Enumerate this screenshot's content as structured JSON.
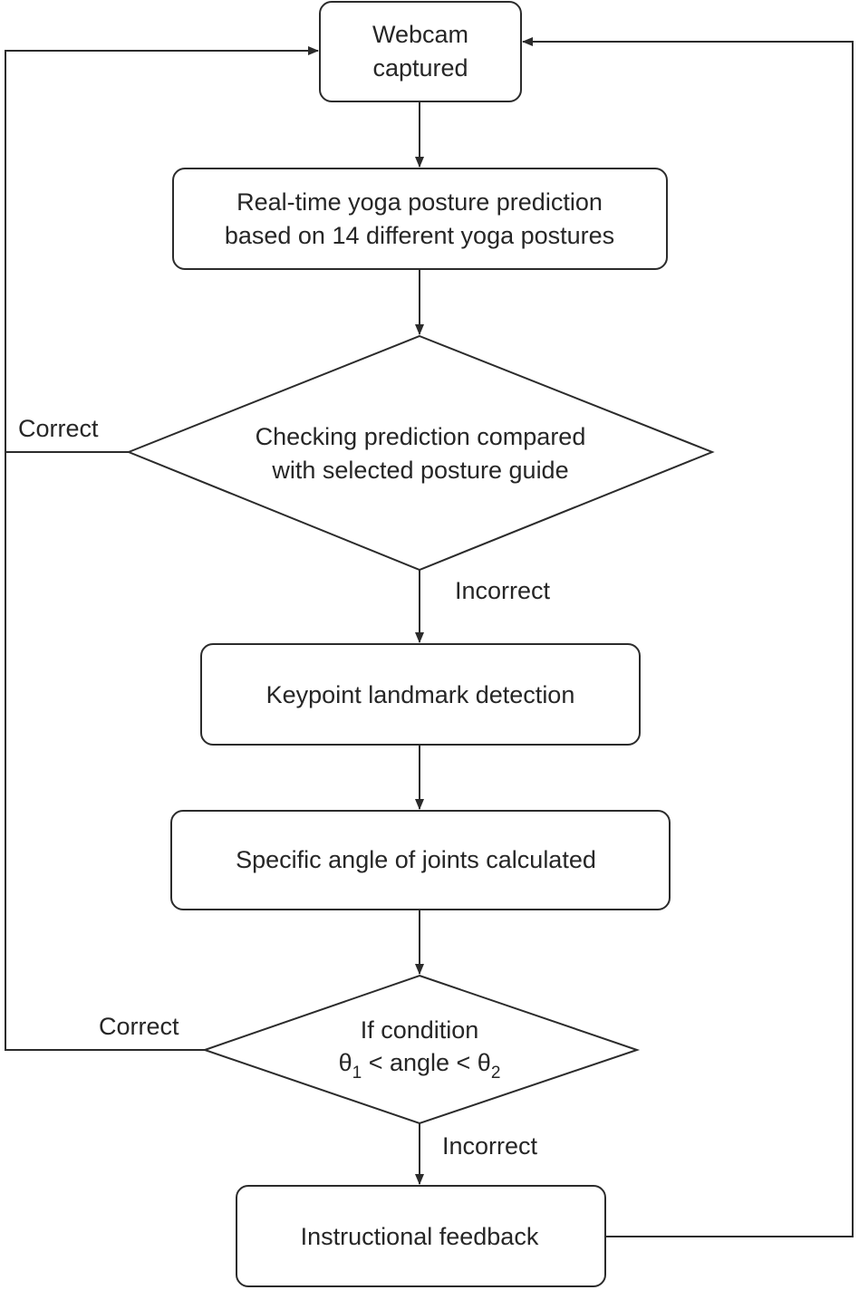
{
  "nodes": {
    "webcam": {
      "line1": "Webcam",
      "line2": "captured"
    },
    "prediction": {
      "line1": "Real-time yoga posture prediction",
      "line2": "based on 14 different yoga postures"
    },
    "check": {
      "line1": "Checking prediction compared",
      "line2": "with selected posture guide"
    },
    "keypoint": {
      "label": "Keypoint landmark detection"
    },
    "angle": {
      "label": "Specific angle of joints calculated"
    },
    "condition": {
      "line1": "If condition",
      "theta": "θ",
      "sub1": "1",
      "middle": " < angle < ",
      "sub2": "2"
    },
    "feedback": {
      "label": "Instructional feedback"
    }
  },
  "edges": {
    "check_correct": "Correct",
    "check_incorrect": "Incorrect",
    "condition_correct": "Correct",
    "condition_incorrect": "Incorrect"
  }
}
